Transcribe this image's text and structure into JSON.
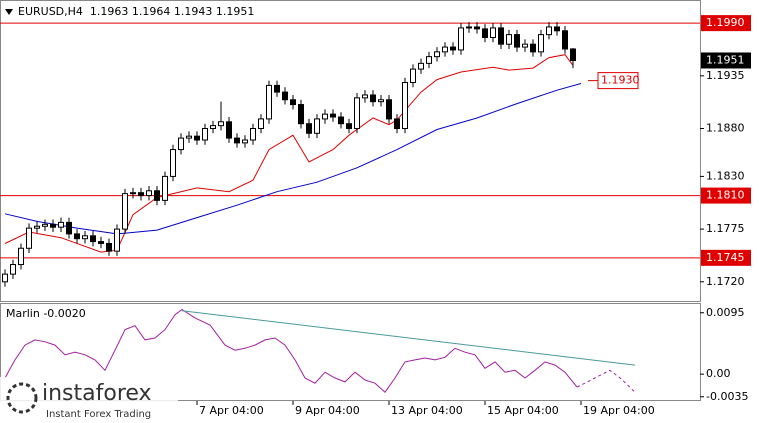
{
  "chart_data": [
    {
      "type": "candlestick",
      "title": "EURUSD,H4  1.1963 1.1964 1.1943 1.1951",
      "xlim": [
        -0.625,
        86.875
      ],
      "ylim": [
        1.1701,
        1.2011
      ],
      "yticks": [
        1.1935,
        {
          "value": 1.188,
          "label": "1.1880"
        },
        {
          "value": 1.183,
          "label": "1.1830"
        },
        1.1775,
        {
          "value": 1.172,
          "label": "1.1720"
        }
      ],
      "up_color": "#ffffff",
      "down_color": "#000000",
      "open": [
        1.172,
        1.1728,
        1.1738,
        1.1755,
        1.1776,
        1.1778,
        1.178,
        1.1777,
        1.1782,
        1.177,
        1.1765,
        1.1768,
        1.1762,
        1.176,
        1.1752,
        1.1775,
        1.1812,
        1.1813,
        1.181,
        1.1815,
        1.1805,
        1.183,
        1.1858,
        1.187,
        1.1872,
        1.1868,
        1.188,
        1.1883,
        1.1887,
        1.187,
        1.1865,
        1.1868,
        1.188,
        1.189,
        1.1925,
        1.1918,
        1.191,
        1.1905,
        1.1885,
        1.1875,
        1.189,
        1.1895,
        1.1892,
        1.1885,
        1.188,
        1.1912,
        1.1915,
        1.1908,
        1.191,
        1.189,
        1.188,
        1.1928,
        1.1942,
        1.1948,
        1.1955,
        1.196,
        1.1965,
        1.1962,
        1.1985,
        1.1986,
        1.1984,
        1.1975,
        1.1985,
        1.1968,
        1.1978,
        1.1965,
        1.1968,
        1.196,
        1.1978,
        1.1986,
        1.1982,
        1.1963
      ],
      "high": [
        1.1733,
        1.1743,
        1.176,
        1.1781,
        1.1783,
        1.1785,
        1.1785,
        1.1787,
        1.1787,
        1.1775,
        1.1773,
        1.1773,
        1.1767,
        1.1765,
        1.178,
        1.1817,
        1.1818,
        1.1818,
        1.182,
        1.182,
        1.1835,
        1.1863,
        1.1875,
        1.1877,
        1.1877,
        1.1885,
        1.1888,
        1.1908,
        1.1892,
        1.1875,
        1.1873,
        1.1885,
        1.1895,
        1.193,
        1.193,
        1.1923,
        1.1915,
        1.191,
        1.189,
        1.1895,
        1.19,
        1.19,
        1.1897,
        1.189,
        1.1917,
        1.192,
        1.192,
        1.1915,
        1.1915,
        1.1895,
        1.1933,
        1.1947,
        1.1953,
        1.196,
        1.1965,
        1.197,
        1.197,
        1.199,
        1.1991,
        1.1991,
        1.1989,
        1.199,
        1.199,
        1.1983,
        1.1983,
        1.1973,
        1.1973,
        1.1983,
        1.1991,
        1.1991,
        1.1987,
        1.1964
      ],
      "low": [
        1.1715,
        1.1723,
        1.1733,
        1.175,
        1.1771,
        1.1773,
        1.1772,
        1.1772,
        1.1765,
        1.176,
        1.176,
        1.1757,
        1.1755,
        1.1747,
        1.1747,
        1.177,
        1.1807,
        1.1805,
        1.1805,
        1.18,
        1.18,
        1.1825,
        1.1853,
        1.1865,
        1.1863,
        1.1863,
        1.1875,
        1.1878,
        1.1865,
        1.186,
        1.186,
        1.1863,
        1.1875,
        1.1885,
        1.1913,
        1.1905,
        1.19,
        1.188,
        1.187,
        1.187,
        1.1885,
        1.1887,
        1.188,
        1.1875,
        1.1875,
        1.1907,
        1.1903,
        1.1903,
        1.1885,
        1.1875,
        1.1875,
        1.1923,
        1.1937,
        1.1943,
        1.195,
        1.1955,
        1.1957,
        1.1957,
        1.198,
        1.1979,
        1.197,
        1.197,
        1.1963,
        1.1963,
        1.196,
        1.196,
        1.1955,
        1.1955,
        1.1973,
        1.1977,
        1.1958,
        1.1943
      ],
      "close": [
        1.1728,
        1.1738,
        1.1755,
        1.1776,
        1.1778,
        1.178,
        1.1777,
        1.1782,
        1.177,
        1.1765,
        1.1768,
        1.1762,
        1.176,
        1.1752,
        1.1775,
        1.1812,
        1.1813,
        1.181,
        1.1815,
        1.1805,
        1.183,
        1.1858,
        1.187,
        1.1872,
        1.1868,
        1.188,
        1.1883,
        1.1887,
        1.187,
        1.1865,
        1.1868,
        1.188,
        1.189,
        1.1925,
        1.1918,
        1.191,
        1.1905,
        1.1885,
        1.1875,
        1.189,
        1.1895,
        1.1892,
        1.1885,
        1.188,
        1.1912,
        1.1915,
        1.1908,
        1.191,
        1.189,
        1.188,
        1.1928,
        1.1942,
        1.1948,
        1.1955,
        1.196,
        1.1965,
        1.1962,
        1.1985,
        1.1986,
        1.1984,
        1.1975,
        1.1985,
        1.1968,
        1.1978,
        1.1965,
        1.1968,
        1.196,
        1.1978,
        1.1986,
        1.1982,
        1.1963,
        1.1951
      ],
      "overlays": [
        {
          "color": "#e00000",
          "x": [
            0,
            3,
            7,
            12,
            14,
            16,
            19,
            24,
            28,
            31,
            33,
            36,
            38,
            41,
            43,
            46,
            48,
            49,
            52,
            54,
            57,
            61,
            63,
            66,
            68,
            70,
            71
          ],
          "values": [
            1.176,
            1.1772,
            1.1766,
            1.1751,
            1.1753,
            1.179,
            1.1808,
            1.1818,
            1.1814,
            1.1826,
            1.1858,
            1.1873,
            1.1845,
            1.1858,
            1.1873,
            1.1891,
            1.1884,
            1.1889,
            1.1918,
            1.1931,
            1.1939,
            1.1944,
            1.1941,
            1.1943,
            1.1954,
            1.1957,
            1.1946
          ]
        },
        {
          "color": "#0000cc",
          "x": [
            0,
            4,
            9,
            14,
            19,
            24,
            29,
            34,
            39,
            44,
            49,
            54,
            59,
            64,
            69,
            72
          ],
          "values": [
            1.1791,
            1.1783,
            1.1776,
            1.177,
            1.1774,
            1.1787,
            1.18,
            1.1814,
            1.1824,
            1.1839,
            1.1858,
            1.1879,
            1.1891,
            1.1906,
            1.192,
            1.1927
          ]
        }
      ],
      "levels": [
        {
          "value": 1.199,
          "label": "1.1990"
        },
        {
          "value": 1.181,
          "label": "1.1810"
        },
        {
          "value": 1.1745,
          "label": "1.1745"
        }
      ],
      "level_color": "#e00000",
      "price_label": 1.1951,
      "annotation": {
        "value": 1.193,
        "label": "1.1930"
      },
      "watermark": {
        "name": "instaforex",
        "tagline": "Instant Forex Trading"
      }
    },
    {
      "type": "line",
      "title": "Marlin -0.0020",
      "xlim": [
        -0.625,
        86.875
      ],
      "ylim": [
        -0.004,
        0.0107
      ],
      "yticks": [
        0.0095,
        {
          "value": 0,
          "label": "0.00"
        },
        -0.0035
      ],
      "xticks": [
        {
          "value": 24,
          "label": "7 Apr 04:00"
        },
        {
          "value": 36,
          "label": "9 Apr 04:00"
        },
        {
          "value": 48,
          "label": "13 Apr 04:00"
        },
        {
          "value": 60,
          "label": "15 Apr 04:00"
        },
        {
          "value": 72,
          "label": "19 Apr 04:00"
        }
      ],
      "series": [
        {
          "color": "#a020a0",
          "style": "solid",
          "x": [
            0,
            1.25,
            2.5,
            3.75,
            5,
            6.25,
            7.5,
            8.75,
            10,
            11.25,
            12.5,
            13.75,
            15,
            16.25,
            17.5,
            18.75,
            20,
            21.25,
            22.125,
            23.75,
            25.625,
            27.5,
            28.75,
            30,
            31.25,
            32.5,
            33.75,
            35,
            36.25,
            37.5,
            38.75,
            40,
            41.25,
            42.5,
            43.75,
            45,
            46.25,
            47.5,
            48.75,
            50,
            51.25,
            52.5,
            53.75,
            55,
            56.25,
            57.5,
            58.75,
            60,
            61.25,
            62.5,
            63.75,
            65,
            66.25,
            67.5,
            68.75,
            70,
            71.5
          ],
          "values": [
            -0.0006,
            0.0022,
            0.0045,
            0.0053,
            0.005,
            0.0045,
            0.003,
            0.0034,
            0.003,
            0.0022,
            0.0006,
            0.0037,
            0.0069,
            0.0075,
            0.0053,
            0.0056,
            0.0069,
            0.0092,
            0.01,
            0.0087,
            0.0076,
            0.0045,
            0.0037,
            0.004,
            0.0045,
            0.0053,
            0.0056,
            0.0045,
            0.0022,
            -0.0006,
            -0.0014,
            0.0003,
            -0.0006,
            -0.0012,
            0.0003,
            -0.0009,
            -0.0014,
            -0.0028,
            -0.0006,
            0.0019,
            0.0022,
            0.0025,
            0.0022,
            0.0026,
            0.004,
            0.0034,
            0.003,
            0.0009,
            0.0019,
            0.0003,
            0.0006,
            -0.0006,
            0.0006,
            0.0019,
            0.0014,
            0.0003,
            -0.002
          ]
        },
        {
          "color": "#4a9a9a",
          "style": "solid",
          "x": [
            22.125,
            78.75
          ],
          "values": [
            0.0098,
            0.0014
          ]
        },
        {
          "color": "#a020a0",
          "style": "dotted",
          "x": [
            71.5,
            73.75,
            75.6,
            76.9,
            78.75
          ],
          "values": [
            -0.002,
            -0.0006,
            0.0006,
            -0.0006,
            -0.0028
          ]
        }
      ]
    }
  ]
}
